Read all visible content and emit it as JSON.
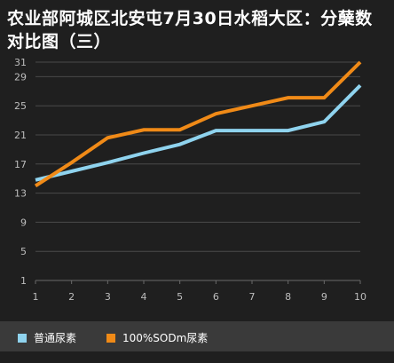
{
  "chart_data": {
    "type": "line",
    "title": "农业部阿城区北安屯7月30日水稻大区：分蘖数对比图（三）",
    "x": [
      1,
      2,
      3,
      4,
      5,
      6,
      7,
      8,
      9,
      10
    ],
    "y_ticks": [
      1,
      5,
      9,
      13,
      17,
      21,
      25,
      29,
      31
    ],
    "ylim": [
      1,
      31
    ],
    "grid": "horizontal",
    "legend_position": "bottom",
    "series": [
      {
        "name": "普通尿素",
        "color": "#8fd3ee",
        "values": [
          14.8,
          16.0,
          17.2,
          18.5,
          19.7,
          21.6,
          21.6,
          21.6,
          22.8,
          27.8
        ]
      },
      {
        "name": "100%SODm尿素",
        "color": "#f08a17",
        "values": [
          14.0,
          17.2,
          20.6,
          21.7,
          21.7,
          23.9,
          25.0,
          26.1,
          26.1,
          31.0
        ]
      }
    ]
  }
}
